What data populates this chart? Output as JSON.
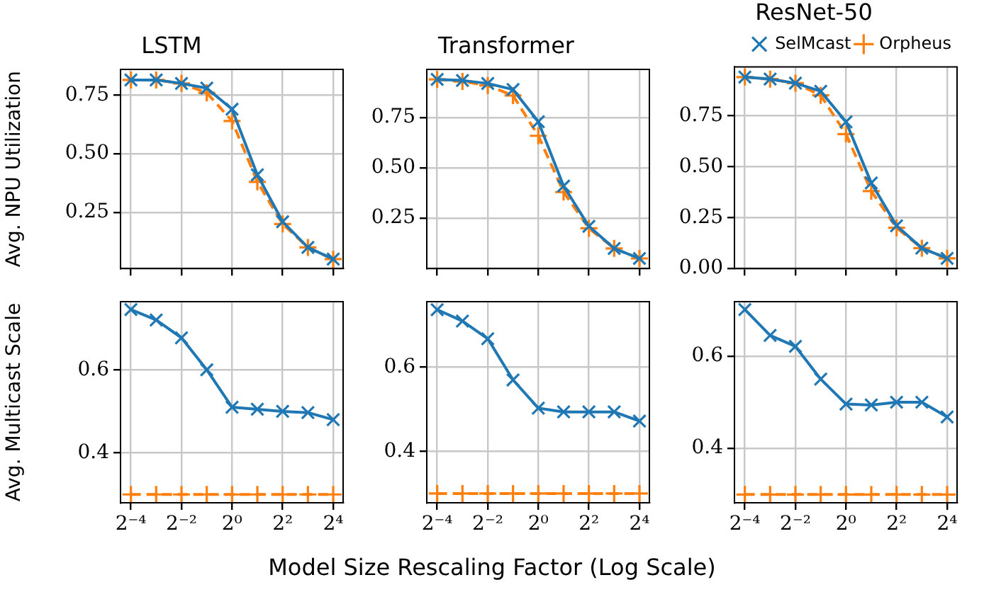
{
  "chart_data": [
    {
      "type": "line",
      "title": "LSTM",
      "ylabel": "Avg. NPU Utilization",
      "x": [
        0.0625,
        0.125,
        0.25,
        0.5,
        1,
        2,
        4,
        8,
        16
      ],
      "xlim": [
        0.047,
        21
      ],
      "xticks": [
        {
          "value": 0.0625,
          "label": null
        },
        {
          "value": 0.25,
          "label": null
        },
        {
          "value": 1,
          "label": null
        },
        {
          "value": 4,
          "label": null
        },
        {
          "value": 16,
          "label": null
        }
      ],
      "ylim": [
        0.01,
        0.86
      ],
      "yticks": [
        {
          "value": 0.25,
          "label": "0.25"
        },
        {
          "value": 0.5,
          "label": "0.50"
        },
        {
          "value": 0.75,
          "label": "0.75"
        }
      ],
      "log": "x",
      "grid": true,
      "tick_labels": "y",
      "series": [
        {
          "color": "#1f77b4",
          "marker": "cross",
          "line_style": "solid",
          "values": [
            0.815,
            0.815,
            0.8,
            0.78,
            0.69,
            0.41,
            0.21,
            0.1,
            0.05
          ]
        },
        {
          "color": "#ff7f0e",
          "marker": "cross",
          "line_style": "dashed",
          "values": [
            0.815,
            0.815,
            0.8,
            0.76,
            0.64,
            0.38,
            0.2,
            0.1,
            0.05
          ]
        }
      ]
    },
    {
      "type": "line",
      "title": "Transformer",
      "x": [
        0.0625,
        0.125,
        0.25,
        0.5,
        1,
        2,
        4,
        8,
        16
      ],
      "xlim": [
        0.047,
        21
      ],
      "xticks": [
        {
          "value": 0.0625,
          "label": null
        },
        {
          "value": 0.25,
          "label": null
        },
        {
          "value": 1,
          "label": null
        },
        {
          "value": 4,
          "label": null
        },
        {
          "value": 16,
          "label": null
        }
      ],
      "ylim": [
        0,
        0.99
      ],
      "yticks": [
        {
          "value": 0.25,
          "label": "0.25"
        },
        {
          "value": 0.5,
          "label": "0.50"
        },
        {
          "value": 0.75,
          "label": "0.75"
        }
      ],
      "log": "x",
      "grid": true,
      "tick_labels": "y",
      "series": [
        {
          "color": "#1f77b4",
          "marker": "cross",
          "line_style": "solid",
          "values": [
            0.94,
            0.935,
            0.92,
            0.89,
            0.73,
            0.41,
            0.21,
            0.1,
            0.05
          ]
        },
        {
          "color": "#ff7f0e",
          "marker": "cross",
          "line_style": "dashed",
          "values": [
            0.94,
            0.93,
            0.91,
            0.86,
            0.66,
            0.38,
            0.2,
            0.1,
            0.05
          ]
        }
      ]
    },
    {
      "type": "line",
      "title": "ResNet-50",
      "x": [
        0.0625,
        0.125,
        0.25,
        0.5,
        1,
        2,
        4,
        8,
        16
      ],
      "xlim": [
        0.047,
        21
      ],
      "xticks": [
        {
          "value": 0.0625,
          "label": null
        },
        {
          "value": 0.25,
          "label": null
        },
        {
          "value": 1,
          "label": null
        },
        {
          "value": 4,
          "label": null
        },
        {
          "value": 16,
          "label": null
        }
      ],
      "ylim": [
        0,
        0.99
      ],
      "yticks": [
        {
          "value": 0,
          "label": "0.00"
        },
        {
          "value": 0.25,
          "label": "0.25"
        },
        {
          "value": 0.5,
          "label": "0.50"
        },
        {
          "value": 0.75,
          "label": "0.75"
        }
      ],
      "log": "x",
      "grid": true,
      "tick_labels": "y",
      "legend": "top right",
      "series": [
        {
          "name": "SelMcast",
          "color": "#1f77b4",
          "marker": "cross",
          "line_style": "solid",
          "values": [
            0.94,
            0.93,
            0.91,
            0.87,
            0.72,
            0.42,
            0.21,
            0.1,
            0.05
          ]
        },
        {
          "name": "Orpheus",
          "color": "#ff7f0e",
          "marker": "cross",
          "line_style": "dashed",
          "values": [
            0.94,
            0.93,
            0.91,
            0.85,
            0.66,
            0.38,
            0.2,
            0.1,
            0.05
          ]
        }
      ]
    },
    {
      "type": "line",
      "ylabel": "Avg. Multicast Scale",
      "x": [
        0.0625,
        0.125,
        0.25,
        0.5,
        1,
        2,
        4,
        8,
        16
      ],
      "xlim": [
        0.047,
        21
      ],
      "xticks": [
        {
          "value": 0.0625,
          "label": "2⁻⁴"
        },
        {
          "value": 0.25,
          "label": "2⁻²"
        },
        {
          "value": 1,
          "label": "2⁰"
        },
        {
          "value": 4,
          "label": "2²"
        },
        {
          "value": 16,
          "label": "2⁴"
        }
      ],
      "ylim": [
        0.28,
        0.764
      ],
      "yticks": [
        {
          "value": 0.4,
          "label": "0.4"
        },
        {
          "value": 0.6,
          "label": "0.6"
        }
      ],
      "log": "x",
      "grid": true,
      "series": [
        {
          "color": "#1f77b4",
          "marker": "cross",
          "line_style": "solid",
          "values": [
            0.745,
            0.72,
            0.677,
            0.6,
            0.51,
            0.505,
            0.5,
            0.497,
            0.48
          ]
        },
        {
          "color": "#ff7f0e",
          "marker": "cross",
          "line_style": "dashed",
          "values": [
            0.3,
            0.3,
            0.3,
            0.3,
            0.3,
            0.3,
            0.3,
            0.3,
            0.3
          ]
        }
      ]
    },
    {
      "type": "line",
      "xlabel": "Model Size Rescaling Factor (Log Scale)",
      "x": [
        0.0625,
        0.125,
        0.25,
        0.5,
        1,
        2,
        4,
        8,
        16
      ],
      "xlim": [
        0.047,
        21
      ],
      "xticks": [
        {
          "value": 0.0625,
          "label": "2⁻⁴"
        },
        {
          "value": 0.25,
          "label": "2⁻²"
        },
        {
          "value": 1,
          "label": "2⁰"
        },
        {
          "value": 4,
          "label": "2²"
        },
        {
          "value": 16,
          "label": "2⁴"
        }
      ],
      "ylim": [
        0.278,
        0.756
      ],
      "yticks": [
        {
          "value": 0.4,
          "label": "0.4"
        },
        {
          "value": 0.6,
          "label": "0.6"
        }
      ],
      "log": "x",
      "grid": true,
      "series": [
        {
          "color": "#1f77b4",
          "marker": "cross",
          "line_style": "solid",
          "values": [
            0.737,
            0.71,
            0.668,
            0.57,
            0.503,
            0.494,
            0.494,
            0.494,
            0.472
          ]
        },
        {
          "color": "#ff7f0e",
          "marker": "cross",
          "line_style": "dashed",
          "values": [
            0.3,
            0.3,
            0.3,
            0.3,
            0.3,
            0.3,
            0.3,
            0.3,
            0.3
          ]
        }
      ]
    },
    {
      "type": "line",
      "x": [
        0.0625,
        0.125,
        0.25,
        0.5,
        1,
        2,
        4,
        8,
        16
      ],
      "xlim": [
        0.047,
        21
      ],
      "xticks": [
        {
          "value": 0.0625,
          "label": "2⁻⁴"
        },
        {
          "value": 0.25,
          "label": "2⁻²"
        },
        {
          "value": 1,
          "label": "2⁰"
        },
        {
          "value": 4,
          "label": "2²"
        },
        {
          "value": 16,
          "label": "2⁴"
        }
      ],
      "ylim": [
        0.282,
        0.718
      ],
      "yticks": [
        {
          "value": 0.4,
          "label": "0.4"
        },
        {
          "value": 0.6,
          "label": "0.6"
        }
      ],
      "log": "x",
      "grid": true,
      "series": [
        {
          "color": "#1f77b4",
          "marker": "cross",
          "line_style": "solid",
          "values": [
            0.701,
            0.645,
            0.621,
            0.55,
            0.496,
            0.494,
            0.5,
            0.5,
            0.468
          ]
        },
        {
          "color": "#ff7f0e",
          "marker": "cross",
          "line_style": "dashed",
          "values": [
            0.3,
            0.3,
            0.3,
            0.3,
            0.3,
            0.3,
            0.3,
            0.3,
            0.3
          ]
        }
      ]
    }
  ]
}
